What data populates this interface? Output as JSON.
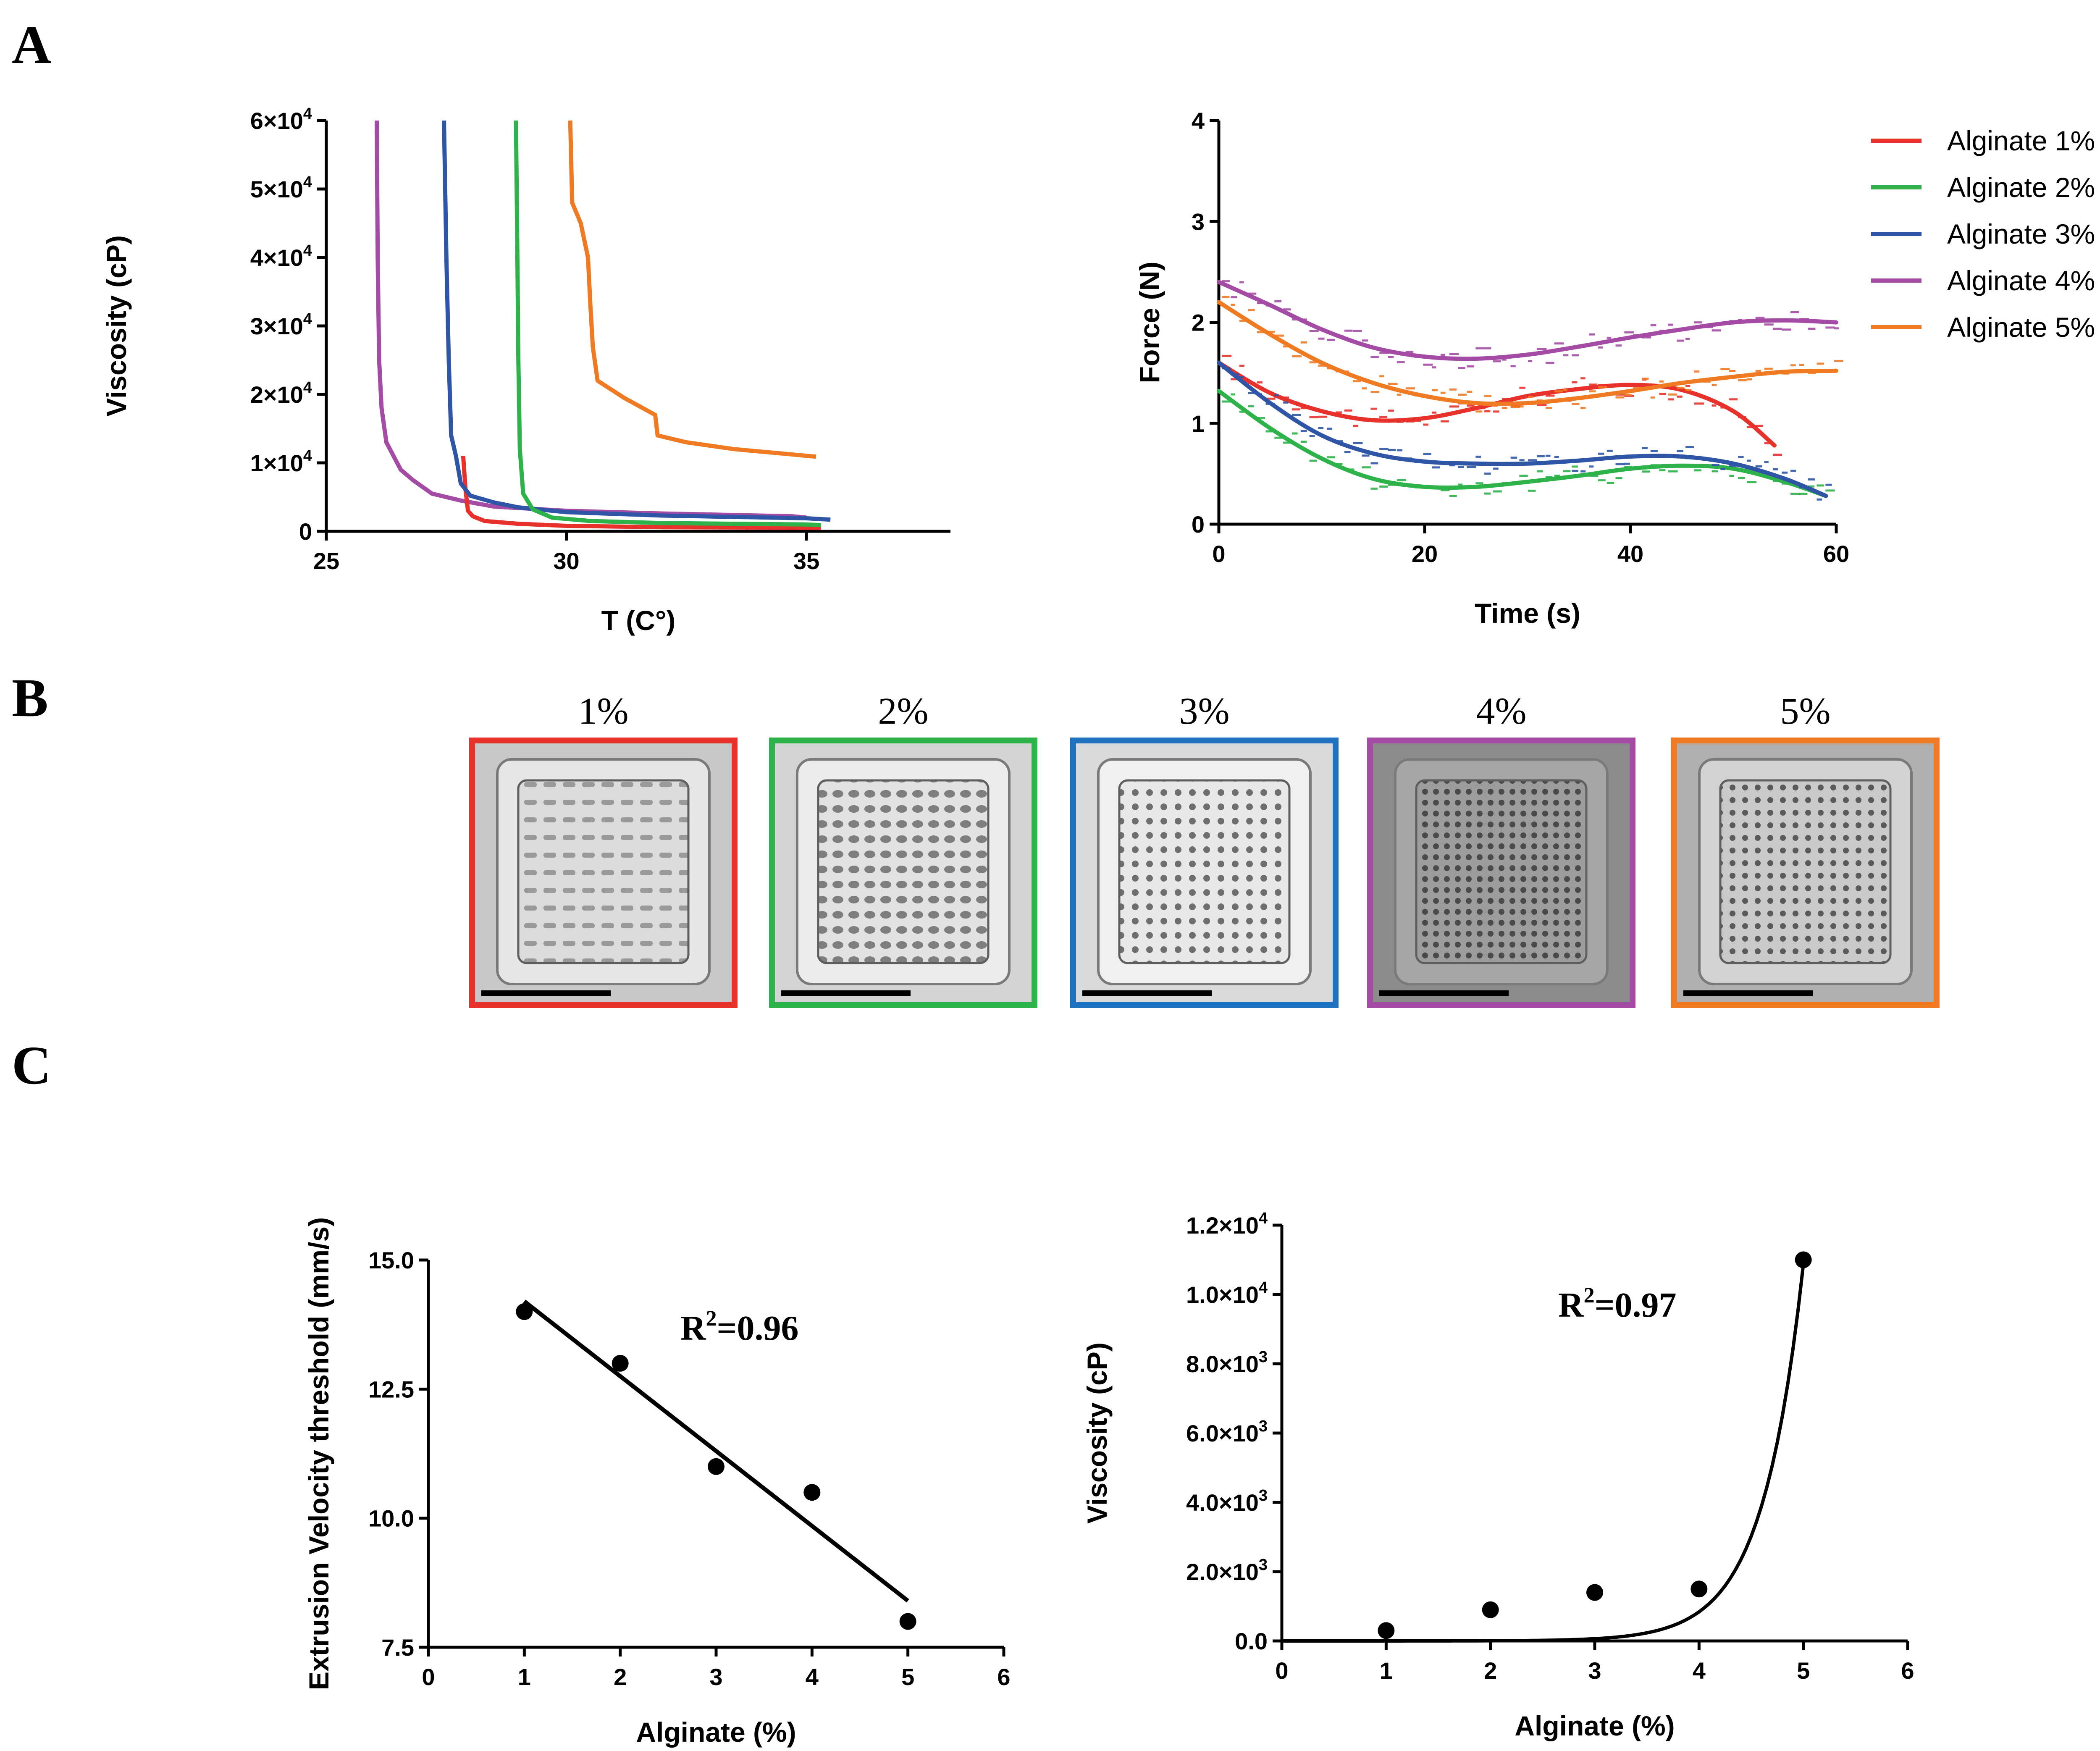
{
  "panel_labels": {
    "a": "A",
    "b": "B",
    "c": "C"
  },
  "colors": {
    "alginate_1": "#e8312b",
    "alginate_2": "#2db34a",
    "alginate_3": "#2e55a6",
    "alginate_4": "#a44ba5",
    "alginate_5": "#f07a22",
    "frame_3": "#1f72c0"
  },
  "chart_data": [
    {
      "id": "A-viscosity",
      "type": "line",
      "title": "",
      "xlabel": "T (C°)",
      "ylabel": "Viscosity (cP)",
      "xlim": [
        25,
        38
      ],
      "ylim": [
        0,
        60000
      ],
      "x_ticks": [
        25,
        30,
        35
      ],
      "x_tick_labels": [
        "25",
        "30",
        "35"
      ],
      "y_ticks": [
        0,
        10000,
        20000,
        30000,
        40000,
        50000,
        60000
      ],
      "y_tick_labels": [
        {
          "m": "0",
          "e": ""
        },
        {
          "m": "1×10",
          "e": "4"
        },
        {
          "m": "2×10",
          "e": "4"
        },
        {
          "m": "3×10",
          "e": "4"
        },
        {
          "m": "4×10",
          "e": "4"
        },
        {
          "m": "5×10",
          "e": "4"
        },
        {
          "m": "6×10",
          "e": "4"
        }
      ],
      "series": [
        {
          "name": "Alginate 1%",
          "color_key": "alginate_1",
          "points": [
            [
              27.85,
              11000
            ],
            [
              27.9,
              6000
            ],
            [
              27.95,
              3000
            ],
            [
              28.05,
              2200
            ],
            [
              28.3,
              1500
            ],
            [
              29,
              1100
            ],
            [
              30,
              800
            ],
            [
              32,
              600
            ],
            [
              35.3,
              500
            ]
          ]
        },
        {
          "name": "Alginate 2%",
          "color_key": "alginate_2",
          "points": [
            [
              28.95,
              60000
            ],
            [
              28.98,
              40000
            ],
            [
              29.0,
              25000
            ],
            [
              29.03,
              12000
            ],
            [
              29.1,
              5500
            ],
            [
              29.3,
              3200
            ],
            [
              29.7,
              2000
            ],
            [
              30.5,
              1500
            ],
            [
              32,
              1200
            ],
            [
              35,
              1000
            ],
            [
              35.3,
              900
            ]
          ]
        },
        {
          "name": "Alginate 3%",
          "color_key": "alginate_3",
          "points": [
            [
              27.45,
              60000
            ],
            [
              27.5,
              40000
            ],
            [
              27.55,
              25000
            ],
            [
              27.6,
              14000
            ],
            [
              27.7,
              11000
            ],
            [
              27.8,
              7000
            ],
            [
              28.0,
              5200
            ],
            [
              28.5,
              4200
            ],
            [
              29,
              3500
            ],
            [
              30,
              2800
            ],
            [
              32,
              2300
            ],
            [
              35,
              1900
            ],
            [
              35.5,
              1700
            ]
          ]
        },
        {
          "name": "Alginate 4%",
          "color_key": "alginate_4",
          "points": [
            [
              26.05,
              60000
            ],
            [
              26.07,
              40000
            ],
            [
              26.1,
              25000
            ],
            [
              26.15,
              18000
            ],
            [
              26.25,
              13000
            ],
            [
              26.4,
              11000
            ],
            [
              26.55,
              9000
            ],
            [
              26.8,
              7500
            ],
            [
              27.2,
              5500
            ],
            [
              27.8,
              4500
            ],
            [
              28.5,
              3600
            ],
            [
              30,
              3000
            ],
            [
              32,
              2600
            ],
            [
              34.7,
              2200
            ],
            [
              35,
              2000
            ]
          ]
        },
        {
          "name": "Alginate 5%",
          "color_key": "alginate_5",
          "points": [
            [
              30.08,
              60000
            ],
            [
              30.12,
              48000
            ],
            [
              30.3,
              45000
            ],
            [
              30.45,
              40000
            ],
            [
              30.5,
              33000
            ],
            [
              30.55,
              27000
            ],
            [
              30.65,
              22000
            ],
            [
              31.2,
              19500
            ],
            [
              31.85,
              17000
            ],
            [
              31.9,
              14000
            ],
            [
              32.5,
              13000
            ],
            [
              33.5,
              12000
            ],
            [
              35.2,
              10900
            ]
          ]
        }
      ]
    },
    {
      "id": "A-force",
      "type": "line",
      "title": "",
      "xlabel": "Time (s)",
      "ylabel": "Force (N)",
      "xlim": [
        0,
        60
      ],
      "ylim": [
        0,
        4
      ],
      "x_ticks": [
        0,
        20,
        40,
        60
      ],
      "x_tick_labels": [
        "0",
        "20",
        "40",
        "60"
      ],
      "y_ticks": [
        0,
        1,
        2,
        3,
        4
      ],
      "y_tick_labels": [
        "0",
        "1",
        "2",
        "3",
        "4"
      ],
      "series": [
        {
          "name": "Alginate 1%",
          "color_key": "alginate_1",
          "fit": [
            [
              0,
              1.6
            ],
            [
              5,
              1.3
            ],
            [
              10,
              1.12
            ],
            [
              15,
              1.03
            ],
            [
              20,
              1.05
            ],
            [
              25,
              1.15
            ],
            [
              30,
              1.27
            ],
            [
              35,
              1.34
            ],
            [
              40,
              1.38
            ],
            [
              45,
              1.33
            ],
            [
              50,
              1.12
            ],
            [
              54,
              0.78
            ]
          ]
        },
        {
          "name": "Alginate 2%",
          "color_key": "alginate_2",
          "fit": [
            [
              0,
              1.32
            ],
            [
              5,
              0.95
            ],
            [
              10,
              0.65
            ],
            [
              15,
              0.45
            ],
            [
              20,
              0.37
            ],
            [
              25,
              0.37
            ],
            [
              30,
              0.42
            ],
            [
              35,
              0.48
            ],
            [
              40,
              0.55
            ],
            [
              45,
              0.58
            ],
            [
              50,
              0.55
            ],
            [
              55,
              0.42
            ],
            [
              59,
              0.28
            ]
          ]
        },
        {
          "name": "Alginate 3%",
          "color_key": "alginate_3",
          "fit": [
            [
              0,
              1.6
            ],
            [
              5,
              1.2
            ],
            [
              10,
              0.88
            ],
            [
              15,
              0.7
            ],
            [
              20,
              0.62
            ],
            [
              25,
              0.6
            ],
            [
              30,
              0.6
            ],
            [
              35,
              0.63
            ],
            [
              40,
              0.67
            ],
            [
              45,
              0.67
            ],
            [
              50,
              0.6
            ],
            [
              55,
              0.45
            ],
            [
              59,
              0.28
            ]
          ]
        },
        {
          "name": "Alginate 4%",
          "color_key": "alginate_4",
          "fit": [
            [
              0,
              2.4
            ],
            [
              5,
              2.17
            ],
            [
              10,
              1.93
            ],
            [
              15,
              1.75
            ],
            [
              20,
              1.66
            ],
            [
              25,
              1.64
            ],
            [
              30,
              1.68
            ],
            [
              35,
              1.76
            ],
            [
              40,
              1.85
            ],
            [
              45,
              1.93
            ],
            [
              50,
              2.0
            ],
            [
              55,
              2.02
            ],
            [
              60,
              2.0
            ]
          ]
        },
        {
          "name": "Alginate 5%",
          "color_key": "alginate_5",
          "fit": [
            [
              0,
              2.2
            ],
            [
              5,
              1.88
            ],
            [
              10,
              1.6
            ],
            [
              15,
              1.4
            ],
            [
              20,
              1.27
            ],
            [
              25,
              1.2
            ],
            [
              30,
              1.2
            ],
            [
              35,
              1.25
            ],
            [
              40,
              1.32
            ],
            [
              45,
              1.4
            ],
            [
              50,
              1.46
            ],
            [
              55,
              1.51
            ],
            [
              60,
              1.52
            ]
          ]
        }
      ]
    },
    {
      "id": "C-extrusion",
      "type": "scatter",
      "title": "",
      "xlabel": "Alginate (%)",
      "ylabel": "Extrusion Velocity threshold (mm/s)",
      "xlim": [
        0,
        6
      ],
      "ylim": [
        7.5,
        15.0
      ],
      "x_ticks": [
        0,
        1,
        2,
        3,
        4,
        5,
        6
      ],
      "x_tick_labels": [
        "0",
        "1",
        "2",
        "3",
        "4",
        "5",
        "6"
      ],
      "y_ticks": [
        7.5,
        10.0,
        12.5,
        15.0
      ],
      "y_tick_labels": [
        "7.5",
        "10.0",
        "12.5",
        "15.0"
      ],
      "points": [
        [
          1,
          14.0
        ],
        [
          2,
          13.0
        ],
        [
          3,
          11.0
        ],
        [
          4,
          10.5
        ],
        [
          5,
          8.0
        ]
      ],
      "fit": [
        [
          1,
          14.2
        ],
        [
          5,
          8.4
        ]
      ],
      "annotation": {
        "base": "R",
        "sup": "2",
        "rest": "=0.96"
      }
    },
    {
      "id": "C-viscosity",
      "type": "scatter",
      "title": "",
      "xlabel": "Alginate (%)",
      "ylabel": "Viscosity (cP)",
      "xlim": [
        0,
        6
      ],
      "ylim": [
        0,
        12000
      ],
      "x_ticks": [
        0,
        1,
        2,
        3,
        4,
        5,
        6
      ],
      "x_tick_labels": [
        "0",
        "1",
        "2",
        "3",
        "4",
        "5",
        "6"
      ],
      "y_ticks": [
        0,
        2000,
        4000,
        6000,
        8000,
        10000,
        12000
      ],
      "y_tick_labels": [
        {
          "m": "0.0",
          "e": ""
        },
        {
          "m": "2.0×10",
          "e": "3"
        },
        {
          "m": "4.0×10",
          "e": "3"
        },
        {
          "m": "6.0×10",
          "e": "3"
        },
        {
          "m": "8.0×10",
          "e": "3"
        },
        {
          "m": "1.0×10",
          "e": "4"
        },
        {
          "m": "1.2×10",
          "e": "4"
        }
      ],
      "points": [
        [
          1,
          300
        ],
        [
          2,
          900
        ],
        [
          3,
          1400
        ],
        [
          4,
          1500
        ],
        [
          5,
          11000
        ]
      ],
      "fit_model": {
        "form": "exponential",
        "a": 0.03,
        "b": 2.56
      },
      "annotation": {
        "base": "R",
        "sup": "2",
        "rest": "=0.97"
      }
    }
  ],
  "legend": {
    "entries": [
      {
        "label": "Alginate 1%",
        "color_key": "alginate_1"
      },
      {
        "label": "Alginate 2%",
        "color_key": "alginate_2"
      },
      {
        "label": "Alginate 3%",
        "color_key": "alginate_3"
      },
      {
        "label": "Alginate 4%",
        "color_key": "alginate_4"
      },
      {
        "label": "Alginate 5%",
        "color_key": "alginate_5"
      }
    ]
  },
  "panel_b": {
    "tiles": [
      {
        "label": "1%",
        "color_key": "alginate_1"
      },
      {
        "label": "2%",
        "color_key": "alginate_2"
      },
      {
        "label": "3%",
        "color_key": "frame_3"
      },
      {
        "label": "4%",
        "color_key": "alginate_4"
      },
      {
        "label": "5%",
        "color_key": "alginate_5"
      }
    ]
  }
}
